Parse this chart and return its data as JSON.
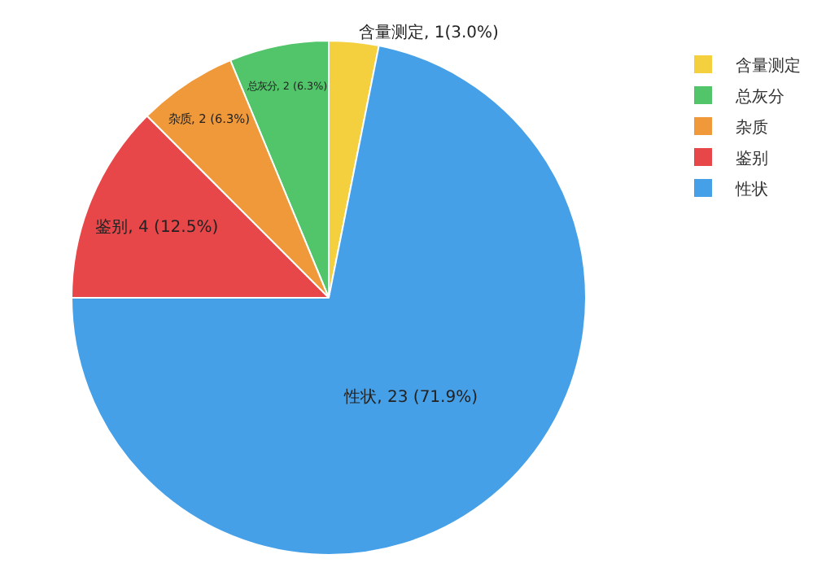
{
  "chart_data": {
    "type": "pie",
    "categories": [
      "含量测定",
      "总灰分",
      "杂质",
      "鉴别",
      "性状"
    ],
    "values": [
      1,
      2,
      2,
      4,
      23
    ],
    "colors": [
      "#f4d03f",
      "#52c46a",
      "#f0993a",
      "#e8474a",
      "#45a0e8"
    ],
    "value_labels": [
      "含量测定, 1(3.0%)",
      "总灰分, 2 (6.3%)",
      "杂质, 2 (6.3%)",
      "鉴别, 4 (12.5%)",
      "性状, 23 (71.9%)"
    ],
    "legend": "top right"
  }
}
